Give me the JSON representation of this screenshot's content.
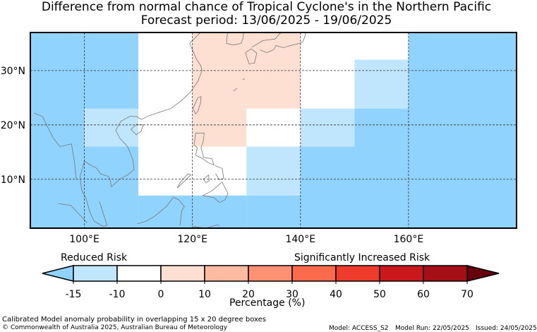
{
  "title": {
    "line1": "Difference from normal chance of Tropical Cyclone's in the Northern Pacific",
    "line2": "Forecast period: 13/06/2025 - 19/06/2025"
  },
  "map": {
    "lon_range": [
      90,
      180
    ],
    "lat_range": [
      1,
      37
    ],
    "lon_ticks": [
      100,
      120,
      140,
      160
    ],
    "lon_tick_labels": [
      "100°E",
      "120°E",
      "140°E",
      "160°E"
    ],
    "lat_ticks": [
      10,
      20,
      30
    ],
    "lat_tick_labels": [
      "10°N",
      "20°N",
      "30°N"
    ],
    "gridlines": true,
    "cells": [
      {
        "lon": [
          90,
          110
        ],
        "lat": [
          0,
          37
        ],
        "cat": "-20_-15"
      },
      {
        "lon": [
          100,
          110
        ],
        "lat": [
          16,
          23
        ],
        "cat": "-15_-10"
      },
      {
        "lon": [
          110,
          130
        ],
        "lat": [
          7,
          37
        ],
        "cat": "-10_0"
      },
      {
        "lon": [
          110,
          130
        ],
        "lat": [
          0,
          7
        ],
        "cat": "-20_-15"
      },
      {
        "lon": [
          120,
          140
        ],
        "lat": [
          16,
          37
        ],
        "cat": "0_10"
      },
      {
        "lon": [
          130,
          140
        ],
        "lat": [
          16,
          23
        ],
        "cat": "-10_0"
      },
      {
        "lon": [
          130,
          140
        ],
        "lat": [
          7,
          16
        ],
        "cat": "-15_-10"
      },
      {
        "lon": [
          130,
          140
        ],
        "lat": [
          0,
          7
        ],
        "cat": "-20_-15"
      },
      {
        "lon": [
          140,
          160
        ],
        "lat": [
          23,
          37
        ],
        "cat": "-10_0"
      },
      {
        "lon": [
          150,
          160
        ],
        "lat": [
          23,
          32
        ],
        "cat": "-15_-10"
      },
      {
        "lon": [
          140,
          150
        ],
        "lat": [
          16,
          23
        ],
        "cat": "-15_-10"
      },
      {
        "lon": [
          150,
          160
        ],
        "lat": [
          16,
          23
        ],
        "cat": "-20_-15"
      },
      {
        "lon": [
          140,
          160
        ],
        "lat": [
          0,
          16
        ],
        "cat": "-20_-15"
      },
      {
        "lon": [
          160,
          180
        ],
        "lat": [
          0,
          37
        ],
        "cat": "-20_-15"
      }
    ]
  },
  "colorbar": {
    "left_label": "Reduced Risk",
    "right_label": "Significantly Increased Risk",
    "axis_label": "Percentage (%)",
    "tick_labels": [
      "-15",
      "-10",
      "0",
      "10",
      "20",
      "30",
      "40",
      "50",
      "60",
      "70"
    ],
    "colors": {
      "-20_-15": "#8fd3fe",
      "-15_-10": "#c0e6fe",
      "-10_0": "#ffffff",
      "0_10": "#fee0d2",
      "10_20": "#fcbba1",
      "20_30": "#fc9272",
      "30_40": "#fb6a4a",
      "40_50": "#ef3b2c",
      "50_60": "#cb181d",
      "60_70": "#a50f15",
      "gt70": "#67000d"
    },
    "segments": [
      "-15_-10",
      "-10_0",
      "0_10",
      "10_20",
      "20_30",
      "30_40",
      "40_50",
      "50_60",
      "60_70"
    ],
    "low_extend": "-20_-15",
    "high_extend": "gt70"
  },
  "footer": {
    "description": "Calibrated Model anomaly probability in overlapping 15 x 20 degree boxes",
    "copyright": "© Commonwealth of Australia 2025, Australian Bureau of Meteorology",
    "model": "Model: ACCESS_S2",
    "model_run": "Model Run: 22/05/2025",
    "issued": "Issued: 24/05/2025"
  }
}
